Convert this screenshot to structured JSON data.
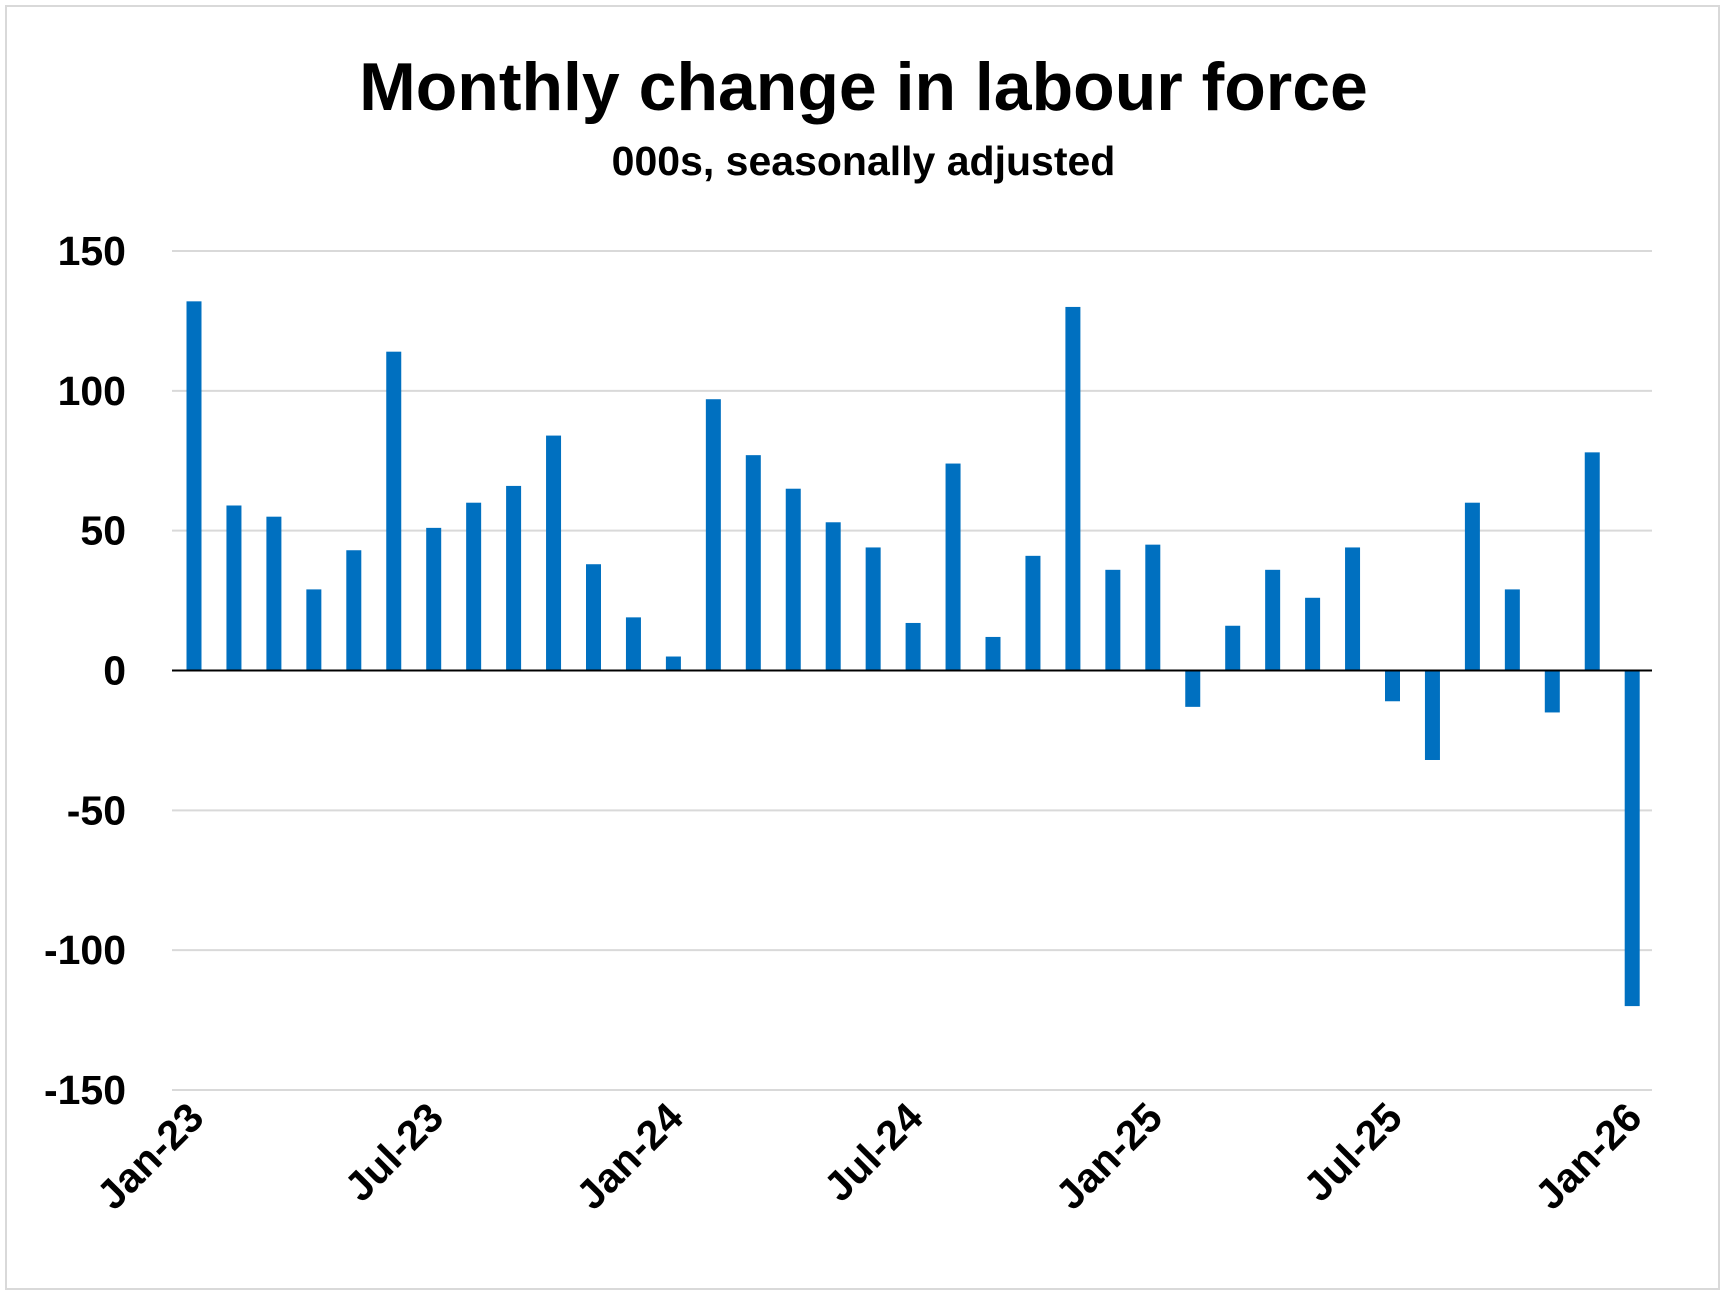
{
  "chart_data": {
    "type": "bar",
    "title": "Monthly change in labour force",
    "subtitle": "000s, seasonally adjusted",
    "xlabel": "",
    "ylabel": "",
    "ylim": [
      -150,
      150
    ],
    "yticks": [
      150,
      100,
      50,
      0,
      -50,
      -100,
      -150
    ],
    "grid": true,
    "legend": "none",
    "bar_color": "#0070c0",
    "x_tick_labels": [
      "Jan-23",
      "Jul-23",
      "Jan-24",
      "Jul-24",
      "Jan-25",
      "Jul-25",
      "Jan-26"
    ],
    "x_tick_every": 6,
    "categories": [
      "Jan-23",
      "Feb-23",
      "Mar-23",
      "Apr-23",
      "May-23",
      "Jun-23",
      "Jul-23",
      "Aug-23",
      "Sep-23",
      "Oct-23",
      "Nov-23",
      "Dec-23",
      "Jan-24",
      "Feb-24",
      "Mar-24",
      "Apr-24",
      "May-24",
      "Jun-24",
      "Jul-24",
      "Aug-24",
      "Sep-24",
      "Oct-24",
      "Nov-24",
      "Dec-24",
      "Jan-25",
      "Feb-25",
      "Mar-25",
      "Apr-25",
      "May-25",
      "Jun-25",
      "Jul-25",
      "Aug-25",
      "Sep-25",
      "Oct-25",
      "Nov-25",
      "Dec-25",
      "Jan-26"
    ],
    "values": [
      132,
      59,
      55,
      29,
      43,
      114,
      51,
      60,
      66,
      84,
      38,
      19,
      5,
      97,
      77,
      65,
      53,
      44,
      17,
      74,
      12,
      41,
      130,
      36,
      45,
      -13,
      16,
      36,
      26,
      44,
      -11,
      -32,
      60,
      29,
      -15,
      78,
      -120
    ]
  }
}
